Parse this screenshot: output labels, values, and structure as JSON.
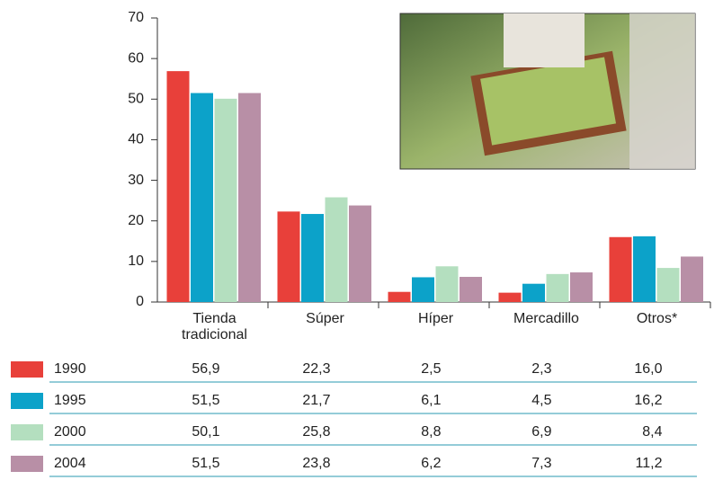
{
  "chart_data": {
    "type": "bar",
    "categories": [
      "Tienda tradicional",
      "Súper",
      "Híper",
      "Mercadillo",
      "Otros*"
    ],
    "series": [
      {
        "name": "1990",
        "color": "#e8403a",
        "values": [
          56.9,
          22.3,
          2.5,
          2.3,
          16.0
        ],
        "value_labels": [
          "56,9",
          "22,3",
          "2,5",
          "2,3",
          "16,0"
        ]
      },
      {
        "name": "1995",
        "color": "#0ca2c9",
        "values": [
          51.5,
          21.7,
          6.1,
          4.5,
          16.2
        ],
        "value_labels": [
          "51,5",
          "21,7",
          "6,1",
          "4,5",
          "16,2"
        ]
      },
      {
        "name": "2000",
        "color": "#b4dfbf",
        "values": [
          50.1,
          25.8,
          8.8,
          6.9,
          8.4
        ],
        "value_labels": [
          "50,1",
          "25,8",
          "8,8",
          "6,9",
          "8,4"
        ]
      },
      {
        "name": "2004",
        "color": "#b88fa6",
        "values": [
          51.5,
          23.8,
          6.2,
          7.3,
          11.2
        ],
        "value_labels": [
          "51,5",
          "23,8",
          "6,2",
          "7,3",
          "11,2"
        ]
      }
    ],
    "ylim": [
      0,
      70
    ],
    "yticks": [
      0,
      10,
      20,
      30,
      40,
      50,
      60,
      70
    ],
    "grid": false
  }
}
